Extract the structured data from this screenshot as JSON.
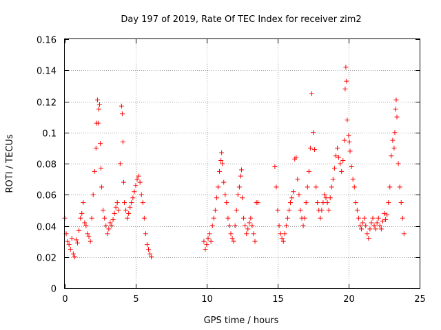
{
  "chart_data": {
    "type": "scatter",
    "title": "Day 197 of 2019, Rate Of TEC Index for receiver zim2",
    "xlabel": "GPS time / hours",
    "ylabel": "ROTI / TECUs",
    "xlim": [
      0,
      25
    ],
    "ylim": [
      0,
      0.16
    ],
    "xticks": [
      0,
      5,
      10,
      15,
      20,
      25
    ],
    "xtick_labels": [
      "0",
      "5",
      "10",
      "15",
      "20",
      "25"
    ],
    "yticks": [
      0,
      0.02,
      0.04,
      0.06,
      0.08,
      0.1,
      0.12,
      0.14,
      0.16
    ],
    "ytick_labels": [
      "0",
      "0.02",
      "0.04",
      "0.06",
      "0.08",
      "0.1",
      "0.12",
      "0.14",
      "0.16"
    ],
    "grid": true,
    "marker": "+",
    "color": "#ff0000",
    "series": [
      {
        "name": "ROTI",
        "points": [
          [
            0.0,
            0.045
          ],
          [
            0.1,
            0.035
          ],
          [
            0.2,
            0.03
          ],
          [
            0.3,
            0.028
          ],
          [
            0.4,
            0.025
          ],
          [
            0.5,
            0.032
          ],
          [
            0.6,
            0.022
          ],
          [
            0.7,
            0.02
          ],
          [
            0.8,
            0.031
          ],
          [
            0.9,
            0.029
          ],
          [
            1.0,
            0.037
          ],
          [
            1.1,
            0.045
          ],
          [
            1.2,
            0.048
          ],
          [
            1.3,
            0.055
          ],
          [
            1.4,
            0.042
          ],
          [
            1.5,
            0.04
          ],
          [
            1.6,
            0.035
          ],
          [
            1.7,
            0.033
          ],
          [
            1.8,
            0.03
          ],
          [
            1.9,
            0.045
          ],
          [
            2.0,
            0.06
          ],
          [
            2.1,
            0.075
          ],
          [
            2.2,
            0.09
          ],
          [
            2.25,
            0.106
          ],
          [
            2.3,
            0.121
          ],
          [
            2.35,
            0.106
          ],
          [
            2.4,
            0.115
          ],
          [
            2.45,
            0.118
          ],
          [
            2.5,
            0.093
          ],
          [
            2.55,
            0.077
          ],
          [
            2.6,
            0.065
          ],
          [
            2.7,
            0.05
          ],
          [
            2.8,
            0.045
          ],
          [
            2.9,
            0.04
          ],
          [
            3.0,
            0.035
          ],
          [
            3.1,
            0.038
          ],
          [
            3.2,
            0.042
          ],
          [
            3.3,
            0.04
          ],
          [
            3.4,
            0.044
          ],
          [
            3.5,
            0.048
          ],
          [
            3.6,
            0.052
          ],
          [
            3.7,
            0.055
          ],
          [
            3.8,
            0.05
          ],
          [
            3.9,
            0.08
          ],
          [
            4.0,
            0.117
          ],
          [
            4.05,
            0.112
          ],
          [
            4.1,
            0.094
          ],
          [
            4.15,
            0.068
          ],
          [
            4.2,
            0.055
          ],
          [
            4.3,
            0.05
          ],
          [
            4.4,
            0.045
          ],
          [
            4.5,
            0.048
          ],
          [
            4.6,
            0.052
          ],
          [
            4.7,
            0.055
          ],
          [
            4.8,
            0.058
          ],
          [
            4.9,
            0.062
          ],
          [
            5.0,
            0.066
          ],
          [
            5.1,
            0.07
          ],
          [
            5.2,
            0.072
          ],
          [
            5.3,
            0.068
          ],
          [
            5.4,
            0.06
          ],
          [
            5.5,
            0.055
          ],
          [
            5.6,
            0.045
          ],
          [
            5.7,
            0.035
          ],
          [
            5.8,
            0.028
          ],
          [
            5.9,
            0.025
          ],
          [
            6.0,
            0.022
          ],
          [
            6.1,
            0.02
          ],
          [
            9.8,
            0.03
          ],
          [
            9.9,
            0.025
          ],
          [
            10.0,
            0.028
          ],
          [
            10.1,
            0.032
          ],
          [
            10.2,
            0.035
          ],
          [
            10.3,
            0.03
          ],
          [
            10.4,
            0.04
          ],
          [
            10.5,
            0.045
          ],
          [
            10.6,
            0.05
          ],
          [
            10.7,
            0.058
          ],
          [
            10.8,
            0.065
          ],
          [
            10.9,
            0.075
          ],
          [
            11.0,
            0.082
          ],
          [
            11.05,
            0.087
          ],
          [
            11.1,
            0.08
          ],
          [
            11.2,
            0.068
          ],
          [
            11.3,
            0.06
          ],
          [
            11.4,
            0.055
          ],
          [
            11.5,
            0.045
          ],
          [
            11.6,
            0.04
          ],
          [
            11.7,
            0.035
          ],
          [
            11.8,
            0.032
          ],
          [
            11.9,
            0.03
          ],
          [
            12.0,
            0.04
          ],
          [
            12.1,
            0.05
          ],
          [
            12.2,
            0.06
          ],
          [
            12.3,
            0.065
          ],
          [
            12.4,
            0.072
          ],
          [
            12.45,
            0.076
          ],
          [
            12.5,
            0.058
          ],
          [
            12.6,
            0.045
          ],
          [
            12.7,
            0.04
          ],
          [
            12.8,
            0.035
          ],
          [
            12.9,
            0.038
          ],
          [
            13.0,
            0.042
          ],
          [
            13.1,
            0.045
          ],
          [
            13.2,
            0.04
          ],
          [
            13.3,
            0.035
          ],
          [
            13.4,
            0.03
          ],
          [
            13.5,
            0.055
          ],
          [
            13.6,
            0.055
          ],
          [
            14.8,
            0.078
          ],
          [
            14.9,
            0.065
          ],
          [
            15.0,
            0.05
          ],
          [
            15.1,
            0.04
          ],
          [
            15.2,
            0.035
          ],
          [
            15.3,
            0.032
          ],
          [
            15.4,
            0.03
          ],
          [
            15.5,
            0.035
          ],
          [
            15.6,
            0.04
          ],
          [
            15.7,
            0.045
          ],
          [
            15.8,
            0.05
          ],
          [
            15.9,
            0.055
          ],
          [
            16.0,
            0.058
          ],
          [
            16.1,
            0.062
          ],
          [
            16.2,
            0.083
          ],
          [
            16.3,
            0.084
          ],
          [
            16.4,
            0.07
          ],
          [
            16.5,
            0.06
          ],
          [
            16.6,
            0.05
          ],
          [
            16.7,
            0.045
          ],
          [
            16.8,
            0.04
          ],
          [
            16.9,
            0.045
          ],
          [
            17.0,
            0.055
          ],
          [
            17.1,
            0.065
          ],
          [
            17.2,
            0.075
          ],
          [
            17.3,
            0.09
          ],
          [
            17.4,
            0.125
          ],
          [
            17.5,
            0.1
          ],
          [
            17.6,
            0.089
          ],
          [
            17.7,
            0.065
          ],
          [
            17.8,
            0.055
          ],
          [
            17.9,
            0.05
          ],
          [
            18.0,
            0.045
          ],
          [
            18.1,
            0.05
          ],
          [
            18.2,
            0.055
          ],
          [
            18.3,
            0.06
          ],
          [
            18.4,
            0.058
          ],
          [
            18.5,
            0.055
          ],
          [
            18.6,
            0.05
          ],
          [
            18.7,
            0.058
          ],
          [
            18.8,
            0.065
          ],
          [
            18.9,
            0.07
          ],
          [
            19.0,
            0.077
          ],
          [
            19.1,
            0.085
          ],
          [
            19.2,
            0.09
          ],
          [
            19.3,
            0.084
          ],
          [
            19.4,
            0.08
          ],
          [
            19.5,
            0.075
          ],
          [
            19.6,
            0.082
          ],
          [
            19.7,
            0.095
          ],
          [
            19.75,
            0.128
          ],
          [
            19.8,
            0.142
          ],
          [
            19.85,
            0.133
          ],
          [
            19.9,
            0.108
          ],
          [
            20.0,
            0.098
          ],
          [
            20.05,
            0.094
          ],
          [
            20.1,
            0.088
          ],
          [
            20.2,
            0.078
          ],
          [
            20.3,
            0.07
          ],
          [
            20.4,
            0.065
          ],
          [
            20.5,
            0.055
          ],
          [
            20.6,
            0.05
          ],
          [
            20.7,
            0.045
          ],
          [
            20.8,
            0.04
          ],
          [
            20.9,
            0.038
          ],
          [
            21.0,
            0.042
          ],
          [
            21.1,
            0.045
          ],
          [
            21.2,
            0.04
          ],
          [
            21.3,
            0.035
          ],
          [
            21.4,
            0.032
          ],
          [
            21.5,
            0.038
          ],
          [
            21.6,
            0.042
          ],
          [
            21.7,
            0.045
          ],
          [
            21.8,
            0.04
          ],
          [
            21.9,
            0.038
          ],
          [
            22.0,
            0.042
          ],
          [
            22.1,
            0.045
          ],
          [
            22.2,
            0.04
          ],
          [
            22.3,
            0.038
          ],
          [
            22.4,
            0.043
          ],
          [
            22.5,
            0.048
          ],
          [
            22.6,
            0.044
          ],
          [
            22.7,
            0.047
          ],
          [
            22.8,
            0.055
          ],
          [
            22.9,
            0.065
          ],
          [
            23.0,
            0.085
          ],
          [
            23.1,
            0.095
          ],
          [
            23.2,
            0.09
          ],
          [
            23.25,
            0.1
          ],
          [
            23.3,
            0.115
          ],
          [
            23.35,
            0.121
          ],
          [
            23.4,
            0.11
          ],
          [
            23.5,
            0.08
          ],
          [
            23.6,
            0.065
          ],
          [
            23.7,
            0.055
          ],
          [
            23.8,
            0.045
          ],
          [
            23.9,
            0.035
          ]
        ]
      }
    ]
  }
}
